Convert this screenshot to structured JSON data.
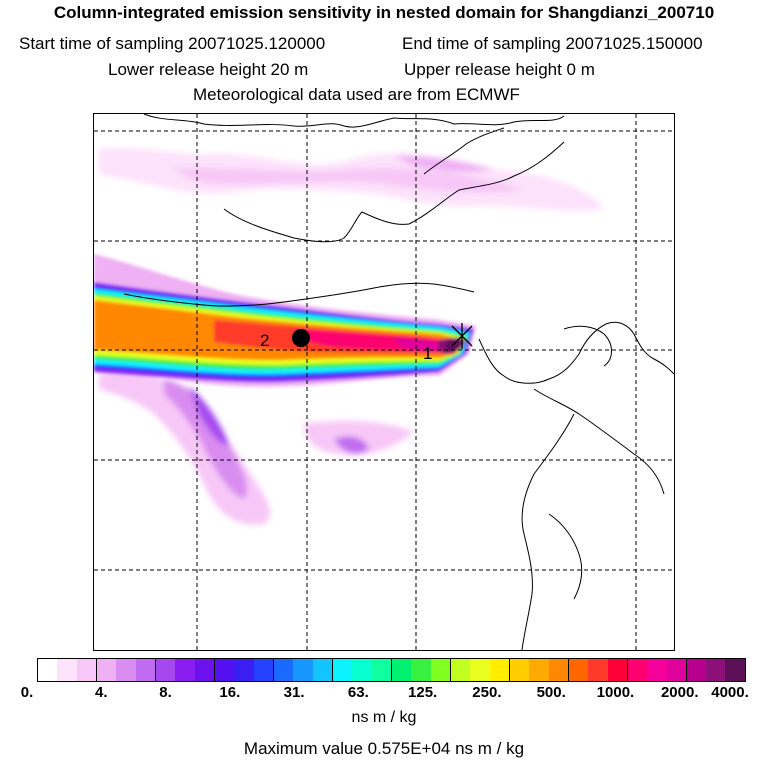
{
  "header": {
    "title": "Column-integrated emission sensitivity in nested domain for Shangdianzi_200710",
    "start_time": "Start time of sampling 20071025.120000",
    "end_time": "End time of sampling 20071025.150000",
    "lower_height": "Lower release height   20 m",
    "upper_height": "Upper release height    0 m",
    "met_data": "Meteorological data used are from ECMWF"
  },
  "map": {
    "markers": [
      {
        "label": "1",
        "kind": "cluster-center"
      },
      {
        "label": "2",
        "kind": "cluster-center"
      }
    ],
    "release_site": "x-cross"
  },
  "colorbar": {
    "colors": [
      "#ffffff",
      "#fde2fb",
      "#f7c8f7",
      "#efb0f4",
      "#d98df0",
      "#c16cf0",
      "#a648f0",
      "#8a1ef2",
      "#6d12ef",
      "#5410ef",
      "#3b1ef2",
      "#2442ff",
      "#1a6aff",
      "#1896ff",
      "#14c4ff",
      "#0cf2ff",
      "#08ffd0",
      "#10ffa0",
      "#00f070",
      "#38f040",
      "#80ff20",
      "#c0ff20",
      "#e8ff20",
      "#ffee00",
      "#ffcc00",
      "#ffaa00",
      "#ff8800",
      "#ff6600",
      "#ff3a2a",
      "#ff0038",
      "#ff0070",
      "#f4009a",
      "#e0009c",
      "#b8008e",
      "#8c1078",
      "#5c1058"
    ],
    "ticks": [
      "0.",
      "4.",
      "8.",
      "16.",
      "31.",
      "63.",
      "125.",
      "250.",
      "500.",
      "1000.",
      "2000.",
      "4000."
    ],
    "units": "ns m / kg"
  },
  "footer": {
    "max_value": "Maximum value  0.575E+04 ns m / kg"
  }
}
